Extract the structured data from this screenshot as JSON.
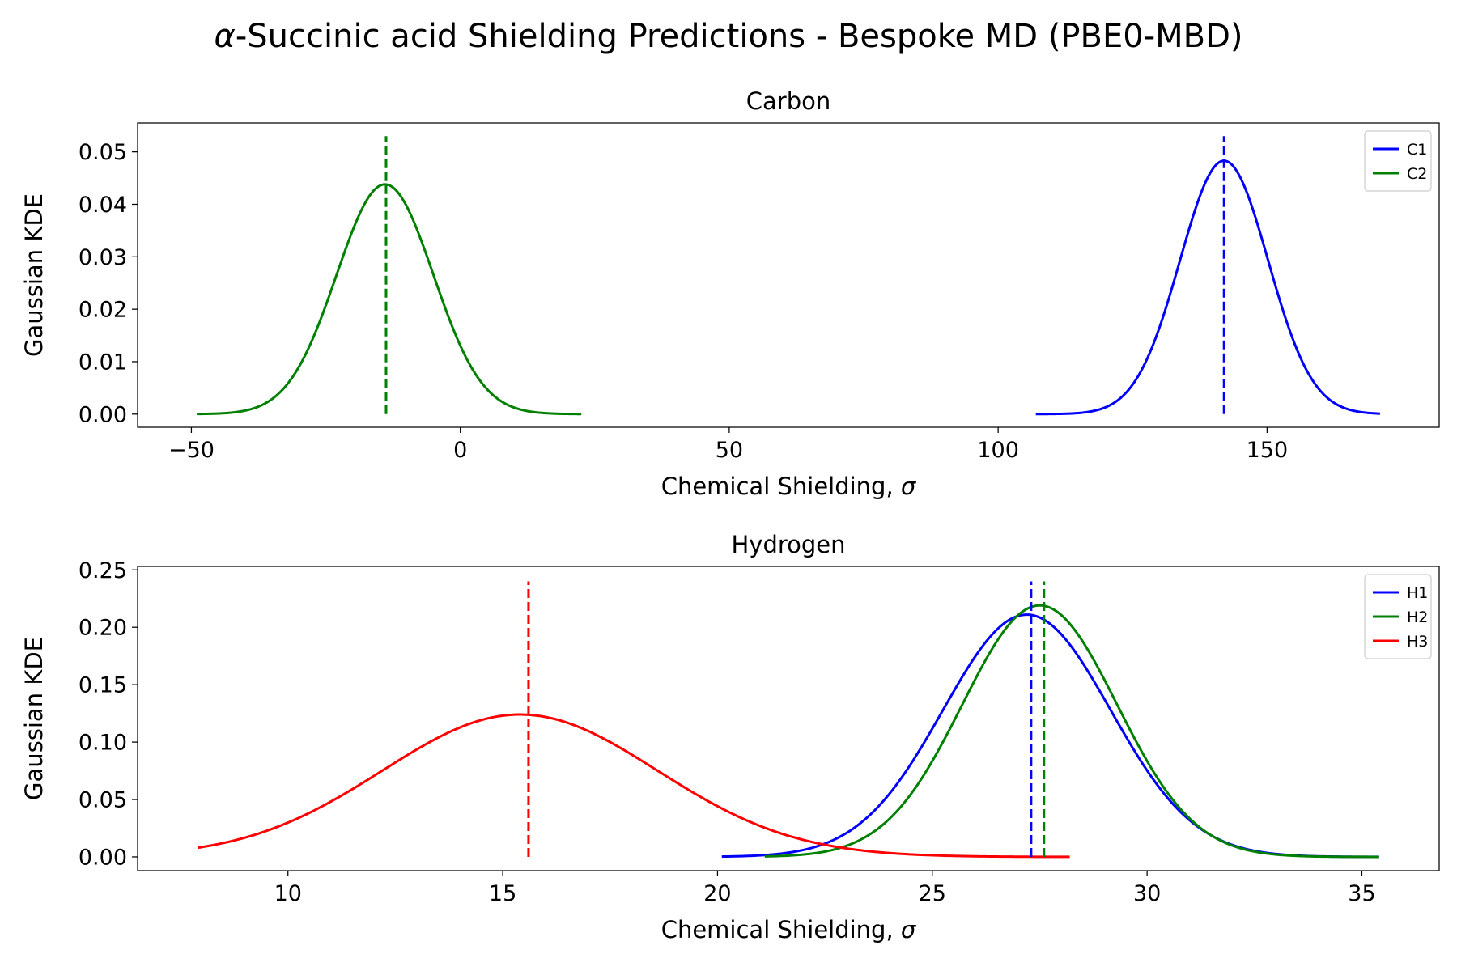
{
  "figure": {
    "title_prefix": "α",
    "title_rest": "-Succinic acid Shielding Predictions - Bespoke MD (PBE0-MBD)"
  },
  "chart_data": [
    {
      "type": "line",
      "title": "Carbon",
      "xlabel_text": "Chemical Shielding, ",
      "xlabel_symbol": "σ",
      "ylabel": "Gaussian KDE",
      "xlim": [
        -60,
        182
      ],
      "ylim": [
        -0.0025,
        0.0555
      ],
      "xticks": [
        -50,
        0,
        50,
        100,
        150
      ],
      "yticks": [
        0.0,
        0.01,
        0.02,
        0.03,
        0.04,
        0.05
      ],
      "ytick_labels": [
        "0.00",
        "0.01",
        "0.02",
        "0.03",
        "0.04",
        "0.05"
      ],
      "legend_position": "upper right",
      "grid": false,
      "series": [
        {
          "name": "C1",
          "color": "#0000ff",
          "mean": 142.0,
          "peak": 0.0483,
          "sigma": 8.2,
          "x_range": [
            107,
            171
          ],
          "marker_x": 142.0,
          "marker_top": 0.053
        },
        {
          "name": "C2",
          "color": "#008000",
          "mean": -14.0,
          "peak": 0.0438,
          "sigma": 9.0,
          "x_range": [
            -49,
            22.5
          ],
          "marker_x": -13.8,
          "marker_top": 0.053
        }
      ]
    },
    {
      "type": "line",
      "title": "Hydrogen",
      "xlabel_text": "Chemical Shielding, ",
      "xlabel_symbol": "σ",
      "ylabel": "Gaussian KDE",
      "xlim": [
        6.5,
        36.8
      ],
      "ylim": [
        -0.012,
        0.253
      ],
      "xticks": [
        10,
        15,
        20,
        25,
        30,
        35
      ],
      "yticks": [
        0.0,
        0.05,
        0.1,
        0.15,
        0.2,
        0.25
      ],
      "ytick_labels": [
        "0.00",
        "0.05",
        "0.10",
        "0.15",
        "0.20",
        "0.25"
      ],
      "legend_position": "upper right",
      "grid": false,
      "series": [
        {
          "name": "H1",
          "color": "#0000ff",
          "mean": 27.2,
          "peak": 0.211,
          "sigma": 1.95,
          "x_range": [
            20.1,
            35.4
          ],
          "marker_x": 27.3,
          "marker_top": 0.24
        },
        {
          "name": "H2",
          "color": "#008000",
          "mean": 27.5,
          "peak": 0.219,
          "sigma": 1.8,
          "x_range": [
            21.1,
            35.4
          ],
          "marker_x": 27.6,
          "marker_top": 0.24
        },
        {
          "name": "H3",
          "color": "#ff0000",
          "mean": 15.4,
          "peak": 0.124,
          "sigma": 3.2,
          "x_range": [
            7.9,
            28.2
          ],
          "marker_x": 15.6,
          "marker_top": 0.24
        }
      ]
    }
  ]
}
